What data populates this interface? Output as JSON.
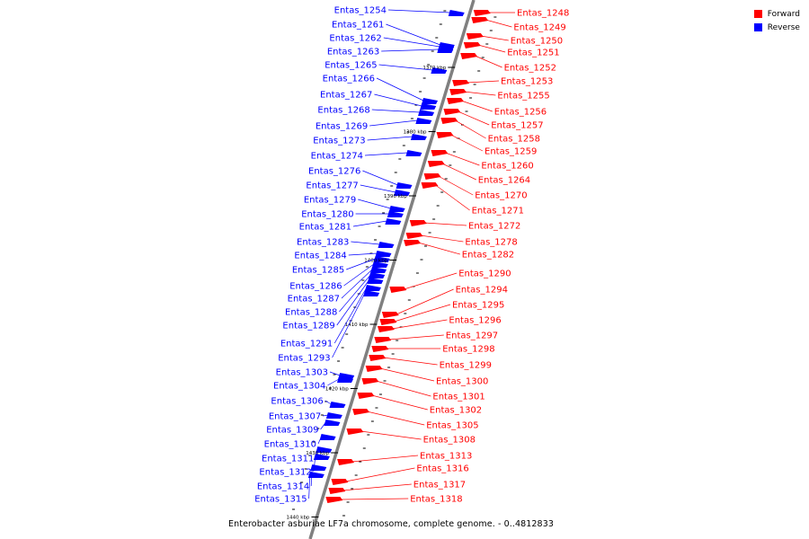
{
  "caption": "Enterobacter asburiae LF7a chromosome, complete genome. - 0..4812833",
  "legend": [
    {
      "label": "Forward",
      "color": "#ff0000"
    },
    {
      "label": "Reverse",
      "color": "#0000ff"
    }
  ],
  "colors": {
    "forward": "#ff0000",
    "reverse": "#0000ff",
    "backbone": "#808080"
  },
  "ticks": [
    "1370 kbp",
    "1380 kbp",
    "1390 kbp",
    "1400 kbp",
    "1410 kbp",
    "1420 kbp",
    "1430 kbp",
    "1440 kbp"
  ],
  "reverse_genes": [
    "Entas_1254",
    "Entas_1261",
    "Entas_1262",
    "Entas_1263",
    "Entas_1265",
    "Entas_1266",
    "Entas_1267",
    "Entas_1268",
    "Entas_1269",
    "Entas_1273",
    "Entas_1274",
    "Entas_1276",
    "Entas_1277",
    "Entas_1279",
    "Entas_1280",
    "Entas_1281",
    "Entas_1283",
    "Entas_1284",
    "Entas_1285",
    "Entas_1286",
    "Entas_1287",
    "Entas_1288",
    "Entas_1289",
    "Entas_1291",
    "Entas_1293",
    "Entas_1303",
    "Entas_1304",
    "Entas_1306",
    "Entas_1307",
    "Entas_1309",
    "Entas_1310",
    "Entas_1311",
    "Entas_1312",
    "Entas_1314",
    "Entas_1315"
  ],
  "forward_genes": [
    "Entas_1248",
    "Entas_1249",
    "Entas_1250",
    "Entas_1251",
    "Entas_1252",
    "Entas_1253",
    "Entas_1255",
    "Entas_1256",
    "Entas_1257",
    "Entas_1258",
    "Entas_1259",
    "Entas_1260",
    "Entas_1264",
    "Entas_1270",
    "Entas_1271",
    "Entas_1272",
    "Entas_1278",
    "Entas_1282",
    "Entas_1290",
    "Entas_1294",
    "Entas_1295",
    "Entas_1296",
    "Entas_1297",
    "Entas_1298",
    "Entas_1299",
    "Entas_1300",
    "Entas_1301",
    "Entas_1302",
    "Entas_1305",
    "Entas_1308",
    "Entas_1313",
    "Entas_1316",
    "Entas_1317",
    "Entas_1318"
  ]
}
